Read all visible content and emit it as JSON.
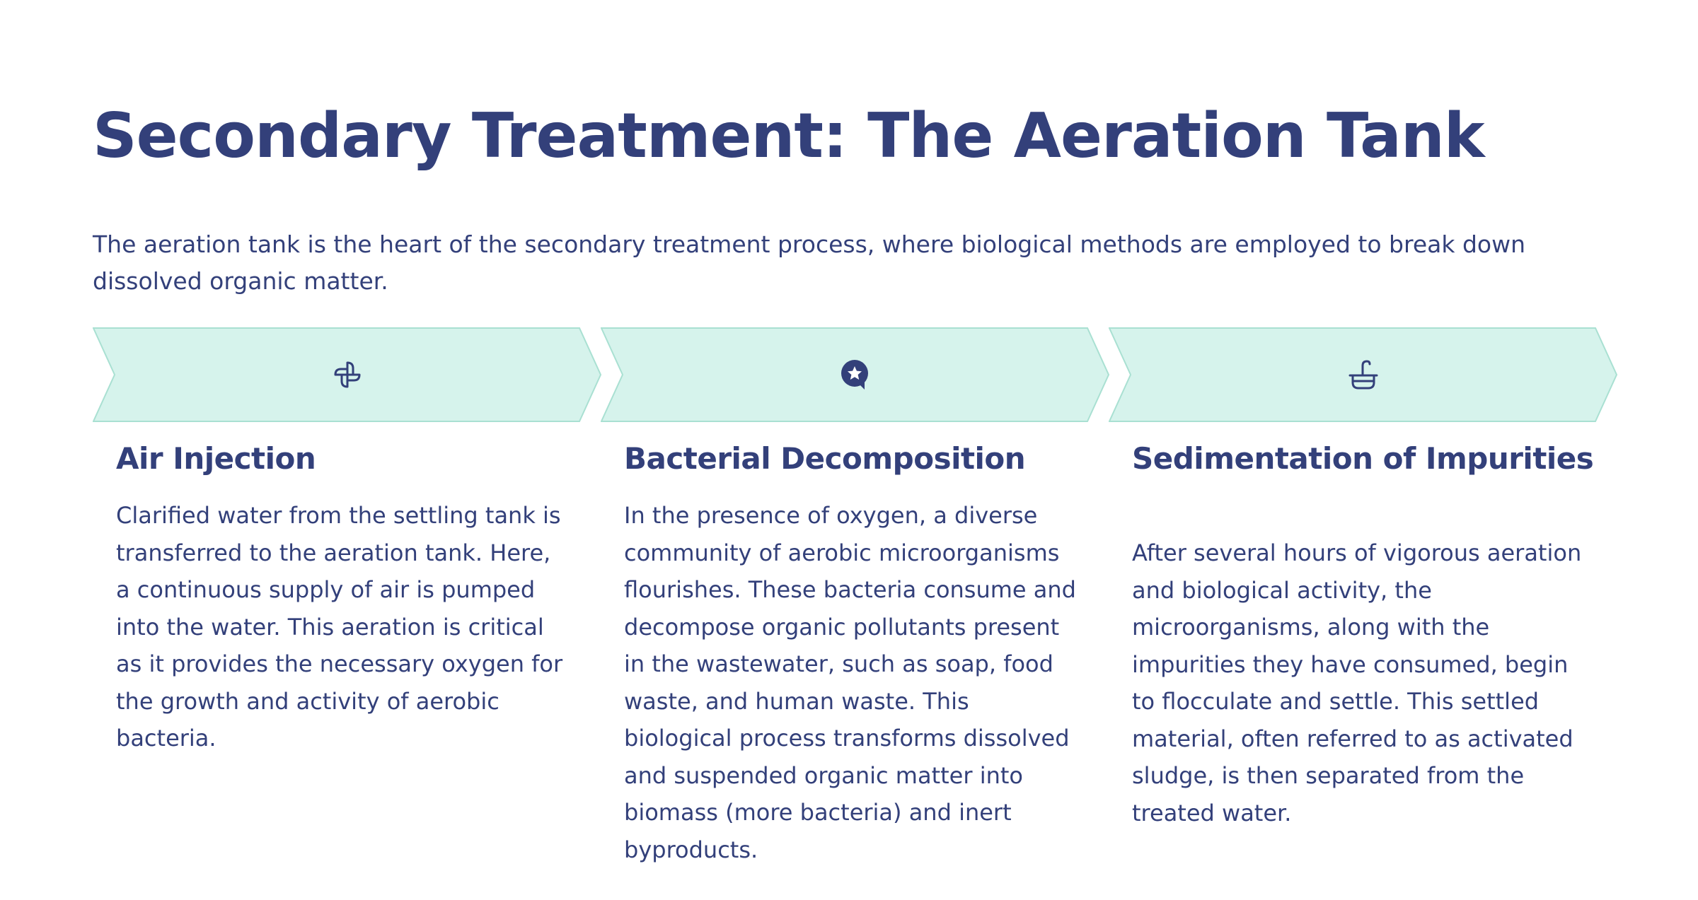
{
  "title": "Secondary Treatment: The Aeration Tank",
  "intro": "The aeration tank is the heart of the secondary treatment process, where biological methods are employed to break down dissolved organic matter.",
  "colors": {
    "text": "#33407a",
    "chevron_fill": "#d6f3ec",
    "chevron_stroke": "#a9e0d2",
    "background": "#ffffff"
  },
  "steps": [
    {
      "icon": "pinwheel-fan-icon",
      "heading": "Air Injection",
      "body": "Clarified water from the settling tank is transferred to the aeration tank. Here, a continuous supply of air is pumped into the water. This aeration is critical as it provides the necessary oxygen for the growth and activity of aerobic bacteria."
    },
    {
      "icon": "star-speech-bubble-icon",
      "heading": "Bacterial Decomposition",
      "body": "In the presence of oxygen, a diverse community of aerobic microorganisms flourishes. These bacteria consume and decompose organic pollutants present in the wastewater, such as soap, food waste, and human waste. This biological process transforms dissolved and suspended organic matter into biomass (more bacteria) and inert byproducts."
    },
    {
      "icon": "basin-faucet-icon",
      "heading": "Sedimentation of Impurities",
      "body": "After several hours of vigorous aeration and biological activity, the microorganisms, along with the impurities they have consumed, begin to flocculate and settle. This settled material, often referred to as activated sludge, is then separated from the treated water."
    }
  ]
}
